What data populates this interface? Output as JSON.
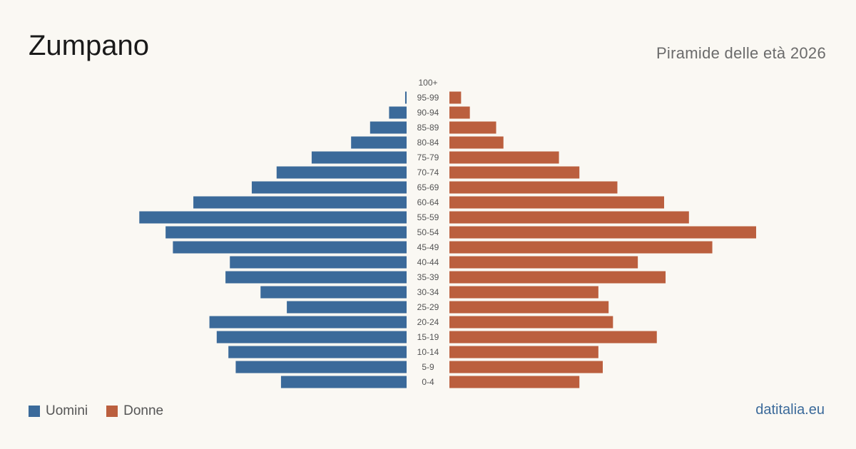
{
  "header": {
    "title": "Zumpano",
    "subtitle": "Piramide delle età 2026"
  },
  "legend": {
    "male_label": "Uomini",
    "female_label": "Donne"
  },
  "brand": "datitalia.eu",
  "colors": {
    "male": "#3b6a9a",
    "female": "#bb5f3e",
    "tick_label": "#555555",
    "background": "#faf8f3"
  },
  "chart_data": {
    "type": "bar",
    "orientation": "horizontal-diverging",
    "categories": [
      "100+",
      "95-99",
      "90-94",
      "85-89",
      "80-84",
      "75-79",
      "70-74",
      "65-69",
      "60-64",
      "55-59",
      "50-54",
      "45-49",
      "40-44",
      "35-39",
      "30-34",
      "25-29",
      "20-24",
      "15-19",
      "10-14",
      "5-9",
      "0-4"
    ],
    "series": [
      {
        "name": "Uomini",
        "values": [
          0,
          1,
          12,
          25,
          38,
          65,
          89,
          106,
          146,
          183,
          165,
          160,
          121,
          124,
          100,
          82,
          135,
          130,
          122,
          117,
          86
        ]
      },
      {
        "name": "Donne",
        "values": [
          0,
          8,
          14,
          32,
          37,
          75,
          89,
          115,
          147,
          164,
          210,
          180,
          129,
          148,
          102,
          109,
          112,
          142,
          102,
          105,
          89
        ]
      }
    ],
    "xlim": [
      0,
      210
    ],
    "legend_position": "bottom-left",
    "grid": false
  }
}
